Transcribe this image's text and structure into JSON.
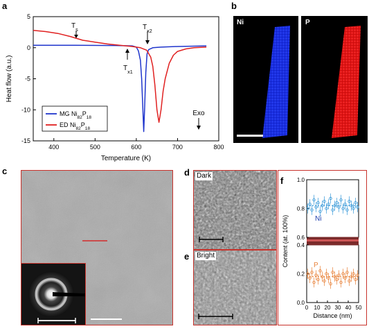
{
  "panels": {
    "a": "a",
    "b": "b",
    "c": "c",
    "d": "d",
    "e": "e",
    "f": "f"
  },
  "chart_data": [
    {
      "type": "line",
      "panel": "a",
      "xlabel": "Temperature (K)",
      "ylabel": "Heat flow (a.u.)",
      "xlim": [
        350,
        800
      ],
      "ylim": [
        -15,
        5
      ],
      "xticks": [
        400,
        500,
        600,
        700,
        800
      ],
      "yticks": [
        5,
        0,
        -5,
        -10,
        -15
      ],
      "series": [
        {
          "name": "MG Ni82P18",
          "label_main": "MG Ni",
          "label_sub1": "82",
          "label_mid": "P",
          "label_sub2": "18",
          "color": "#1f35cc",
          "x": [
            350,
            450,
            550,
            590,
            600,
            605,
            610,
            613,
            616,
            618,
            620,
            623,
            626,
            630,
            640,
            660,
            700,
            770
          ],
          "y": [
            0.4,
            0.4,
            0.35,
            0.3,
            0.1,
            -0.5,
            -2,
            -5,
            -10,
            -13.5,
            -10,
            -4,
            -1,
            -0.3,
            0,
            0.1,
            0.2,
            0.3
          ]
        },
        {
          "name": "ED Ni82P18",
          "label_main": "ED Ni",
          "label_sub1": "82",
          "label_mid": "P",
          "label_sub2": "18",
          "color": "#e02020",
          "x": [
            350,
            380,
            410,
            440,
            470,
            500,
            530,
            560,
            590,
            610,
            625,
            635,
            640,
            645,
            650,
            655,
            660,
            665,
            670,
            680,
            690,
            700,
            720,
            740,
            770
          ],
          "y": [
            2.8,
            2.6,
            2.3,
            1.8,
            1.2,
            0.9,
            0.6,
            0.4,
            0.2,
            0,
            -0.4,
            -1.5,
            -3,
            -6,
            -10,
            -12,
            -10,
            -7,
            -5,
            -2.5,
            -1.2,
            -0.6,
            -0.2,
            0,
            0.1
          ]
        }
      ],
      "annotations": {
        "ts_main": "T",
        "ts_sub": "s",
        "tx1_main": "T",
        "tx1_sub": "x1",
        "tx2_main": "T",
        "tx2_sub": "x2",
        "exo": "Exo"
      }
    },
    {
      "type": "scatter",
      "panel": "f",
      "xlabel": "Distance (nm)",
      "ylabel": "Content (at. 100%)",
      "xlim": [
        0,
        50
      ],
      "xticks": [
        0,
        10,
        20,
        30,
        40,
        50
      ],
      "top_ylim": [
        0.6,
        1.0
      ],
      "top_yticks": [
        1.0,
        0.8,
        0.6
      ],
      "bottom_ylim": [
        0.0,
        0.4
      ],
      "bottom_yticks": [
        0.4,
        0.2,
        0.0
      ],
      "series": [
        {
          "name": "Ni",
          "color": "#3a9ad9",
          "mean": 0.82,
          "x": [
            1,
            3,
            5,
            7,
            9,
            11,
            13,
            15,
            17,
            19,
            21,
            23,
            25,
            27,
            29,
            31,
            33,
            35,
            37,
            39,
            41,
            43,
            45,
            47,
            49
          ],
          "y": [
            0.8,
            0.83,
            0.79,
            0.86,
            0.81,
            0.84,
            0.78,
            0.82,
            0.85,
            0.8,
            0.83,
            0.87,
            0.79,
            0.82,
            0.84,
            0.81,
            0.86,
            0.8,
            0.83,
            0.79,
            0.85,
            0.82,
            0.8,
            0.84,
            0.81
          ]
        },
        {
          "name": "P",
          "color": "#e8823a",
          "mean": 0.18,
          "x": [
            1,
            3,
            5,
            7,
            9,
            11,
            13,
            15,
            17,
            19,
            21,
            23,
            25,
            27,
            29,
            31,
            33,
            35,
            37,
            39,
            41,
            43,
            45,
            47,
            49
          ],
          "y": [
            0.2,
            0.17,
            0.21,
            0.14,
            0.19,
            0.16,
            0.22,
            0.18,
            0.15,
            0.2,
            0.17,
            0.13,
            0.21,
            0.18,
            0.16,
            0.19,
            0.14,
            0.2,
            0.17,
            0.21,
            0.15,
            0.18,
            0.2,
            0.16,
            0.19
          ]
        }
      ]
    }
  ],
  "panel_b": {
    "ni_label": "Ni",
    "p_label": "P",
    "ni_color": "#1a2fe0",
    "p_color": "#e01515"
  },
  "panel_d": {
    "label": "Dark"
  },
  "panel_e": {
    "label": "Bright"
  },
  "frame_color": "#c8322b"
}
